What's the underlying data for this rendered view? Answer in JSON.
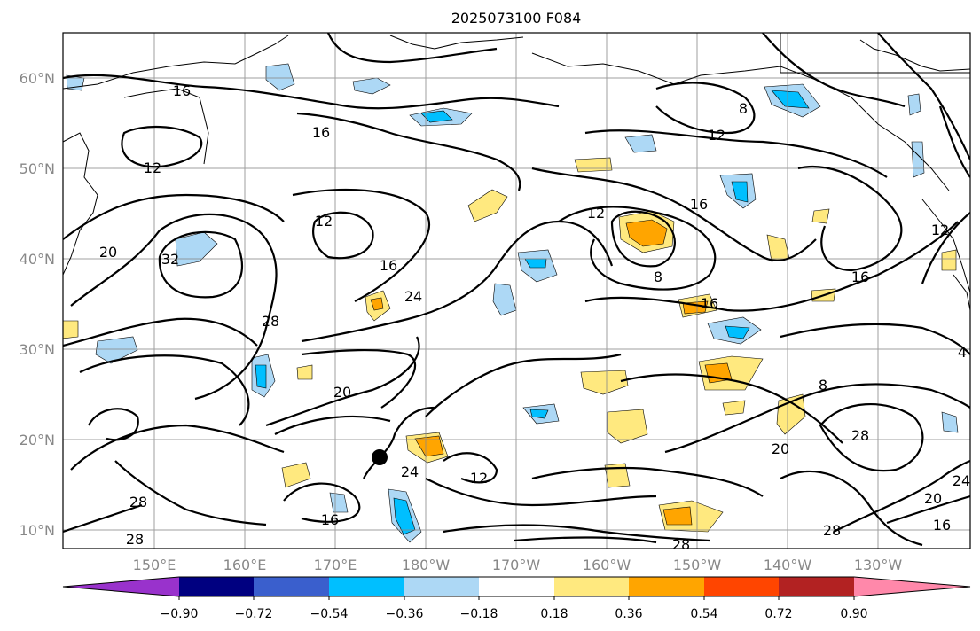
{
  "title": "2025073100 F084",
  "map": {
    "lat_labels": [
      "60°N",
      "50°N",
      "40°N",
      "30°N",
      "20°N",
      "10°N"
    ],
    "lon_labels": [
      "150°E",
      "160°E",
      "170°E",
      "180°W",
      "170°W",
      "160°W",
      "150°W",
      "140°W",
      "130°W"
    ],
    "contour_labels": [
      "16",
      "12",
      "16",
      "12",
      "16",
      "8",
      "12",
      "16",
      "24",
      "16",
      "8",
      "16",
      "12",
      "32",
      "28",
      "20",
      "24",
      "20",
      "16",
      "28",
      "12",
      "28",
      "8",
      "20",
      "28",
      "24",
      "16",
      "20",
      "28",
      "28",
      "12",
      "4"
    ],
    "marker": "storm-center"
  },
  "colorbar": {
    "tick_labels": [
      "−0.90",
      "−0.72",
      "−0.54",
      "−0.36",
      "−0.18",
      "0.18",
      "0.36",
      "0.54",
      "0.72",
      "0.90"
    ],
    "colors": [
      "#9932cc",
      "#000080",
      "#3a5fcd",
      "#00bfff",
      "#add8f5",
      "#ffffff",
      "#ffe97f",
      "#ffa500",
      "#ff4500",
      "#b22222",
      "#ff88aa"
    ]
  }
}
